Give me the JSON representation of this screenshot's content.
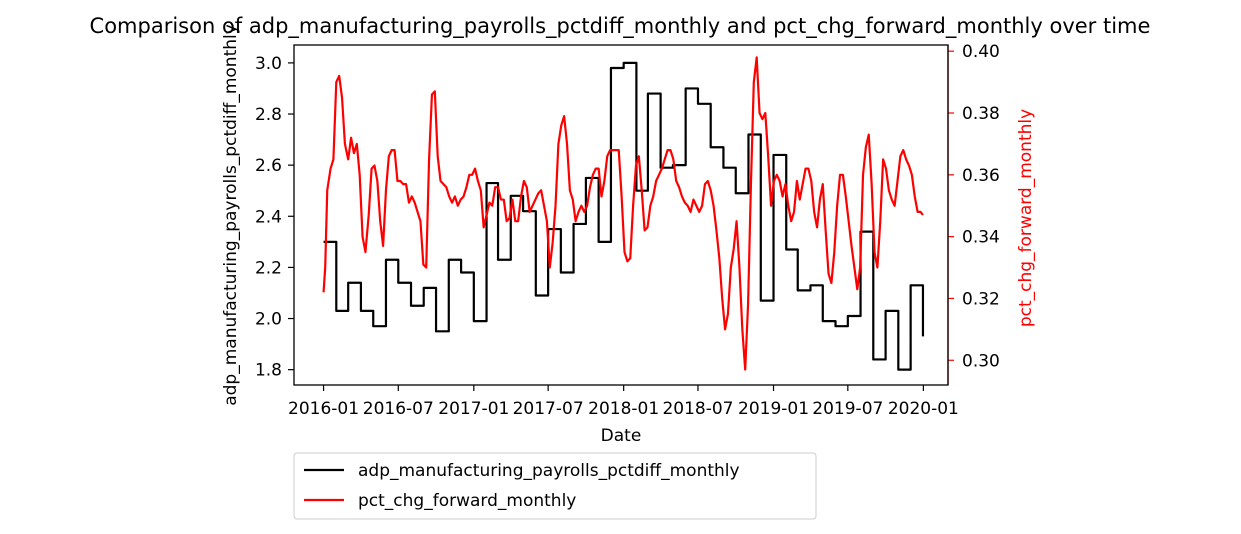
{
  "chart_data": {
    "type": "line",
    "title": "Comparison of adp_manufacturing_payrolls_pctdiff_monthly and pct_chg_forward_monthly over time",
    "xlabel": "Date",
    "ylabel_left": "adp_manufacturing_payrolls_pctdiff_monthly",
    "ylabel_right": "pct_chg_forward_monthly",
    "x_ticks": [
      "2016-01",
      "2016-07",
      "2017-01",
      "2017-07",
      "2018-01",
      "2018-07",
      "2019-01",
      "2019-07",
      "2020-01"
    ],
    "y_left_ticks": [
      "1.8",
      "2.0",
      "2.2",
      "2.4",
      "2.6",
      "2.8",
      "3.0"
    ],
    "y_right_ticks": [
      "0.30",
      "0.32",
      "0.34",
      "0.36",
      "0.38",
      "0.40"
    ],
    "xlim": [
      "2015-10-21",
      "2020-03-01"
    ],
    "ylim_left": [
      1.74,
      3.07
    ],
    "ylim_right": [
      0.292,
      0.402
    ],
    "grid": false,
    "legend": "below plot, left",
    "colors": {
      "left_series": "#000000",
      "right_series": "#ff0000",
      "right_axis": "#ff0000"
    },
    "series": [
      {
        "name": "adp_manufacturing_payrolls_pctdiff_monthly",
        "axis": "left",
        "step": true,
        "points": [
          [
            "2016-01-01",
            2.3
          ],
          [
            "2016-02-01",
            2.03
          ],
          [
            "2016-03-01",
            2.14
          ],
          [
            "2016-04-01",
            2.03
          ],
          [
            "2016-05-01",
            1.97
          ],
          [
            "2016-06-01",
            2.23
          ],
          [
            "2016-07-01",
            2.14
          ],
          [
            "2016-08-01",
            2.05
          ],
          [
            "2016-09-01",
            2.12
          ],
          [
            "2016-10-01",
            1.95
          ],
          [
            "2016-11-01",
            2.23
          ],
          [
            "2016-12-01",
            2.18
          ],
          [
            "2017-01-01",
            1.99
          ],
          [
            "2017-02-01",
            2.53
          ],
          [
            "2017-03-01",
            2.23
          ],
          [
            "2017-04-01",
            2.48
          ],
          [
            "2017-05-01",
            2.42
          ],
          [
            "2017-06-01",
            2.09
          ],
          [
            "2017-07-01",
            2.35
          ],
          [
            "2017-08-01",
            2.18
          ],
          [
            "2017-09-01",
            2.37
          ],
          [
            "2017-10-01",
            2.55
          ],
          [
            "2017-11-01",
            2.3
          ],
          [
            "2017-12-01",
            2.98
          ],
          [
            "2018-01-01",
            3.0
          ],
          [
            "2018-02-01",
            2.5
          ],
          [
            "2018-03-01",
            2.88
          ],
          [
            "2018-04-01",
            2.59
          ],
          [
            "2018-05-01",
            2.6
          ],
          [
            "2018-06-01",
            2.9
          ],
          [
            "2018-07-01",
            2.84
          ],
          [
            "2018-08-01",
            2.67
          ],
          [
            "2018-09-01",
            2.59
          ],
          [
            "2018-10-01",
            2.49
          ],
          [
            "2018-11-01",
            2.72
          ],
          [
            "2018-12-01",
            2.07
          ],
          [
            "2019-01-01",
            2.64
          ],
          [
            "2019-02-01",
            2.27
          ],
          [
            "2019-03-01",
            2.11
          ],
          [
            "2019-04-01",
            2.13
          ],
          [
            "2019-05-01",
            1.99
          ],
          [
            "2019-06-01",
            1.97
          ],
          [
            "2019-07-01",
            2.01
          ],
          [
            "2019-08-01",
            2.34
          ],
          [
            "2019-09-01",
            1.84
          ],
          [
            "2019-10-01",
            2.03
          ],
          [
            "2019-11-01",
            1.8
          ],
          [
            "2019-12-01",
            2.13
          ],
          [
            "2019-12-31",
            1.93
          ]
        ]
      },
      {
        "name": "pct_chg_forward_monthly",
        "axis": "right",
        "step": false,
        "points": [
          [
            "2016-01-01",
            0.322
          ],
          [
            "2016-01-05",
            0.33
          ],
          [
            "2016-01-10",
            0.355
          ],
          [
            "2016-01-18",
            0.362
          ],
          [
            "2016-01-25",
            0.365
          ],
          [
            "2016-02-01",
            0.39
          ],
          [
            "2016-02-08",
            0.392
          ],
          [
            "2016-02-15",
            0.385
          ],
          [
            "2016-02-22",
            0.37
          ],
          [
            "2016-03-01",
            0.365
          ],
          [
            "2016-03-08",
            0.372
          ],
          [
            "2016-03-15",
            0.367
          ],
          [
            "2016-03-22",
            0.37
          ],
          [
            "2016-03-29",
            0.36
          ],
          [
            "2016-04-05",
            0.34
          ],
          [
            "2016-04-12",
            0.335
          ],
          [
            "2016-04-20",
            0.347
          ],
          [
            "2016-04-27",
            0.362
          ],
          [
            "2016-05-04",
            0.363
          ],
          [
            "2016-05-11",
            0.358
          ],
          [
            "2016-05-18",
            0.345
          ],
          [
            "2016-05-25",
            0.337
          ],
          [
            "2016-06-01",
            0.355
          ],
          [
            "2016-06-08",
            0.366
          ],
          [
            "2016-06-15",
            0.368
          ],
          [
            "2016-06-22",
            0.368
          ],
          [
            "2016-06-29",
            0.358
          ],
          [
            "2016-07-06",
            0.358
          ],
          [
            "2016-07-13",
            0.357
          ],
          [
            "2016-07-20",
            0.357
          ],
          [
            "2016-07-27",
            0.351
          ],
          [
            "2016-08-03",
            0.353
          ],
          [
            "2016-08-10",
            0.351
          ],
          [
            "2016-08-17",
            0.348
          ],
          [
            "2016-08-24",
            0.345
          ],
          [
            "2016-08-31",
            0.331
          ],
          [
            "2016-09-07",
            0.33
          ],
          [
            "2016-09-14",
            0.365
          ],
          [
            "2016-09-21",
            0.386
          ],
          [
            "2016-09-28",
            0.387
          ],
          [
            "2016-10-05",
            0.366
          ],
          [
            "2016-10-12",
            0.358
          ],
          [
            "2016-10-19",
            0.357
          ],
          [
            "2016-10-26",
            0.356
          ],
          [
            "2016-11-02",
            0.353
          ],
          [
            "2016-11-09",
            0.351
          ],
          [
            "2016-11-16",
            0.353
          ],
          [
            "2016-11-23",
            0.35
          ],
          [
            "2016-11-30",
            0.352
          ],
          [
            "2016-12-07",
            0.353
          ],
          [
            "2016-12-14",
            0.356
          ],
          [
            "2016-12-21",
            0.36
          ],
          [
            "2016-12-28",
            0.36
          ],
          [
            "2017-01-04",
            0.362
          ],
          [
            "2017-01-11",
            0.358
          ],
          [
            "2017-01-18",
            0.355
          ],
          [
            "2017-01-25",
            0.343
          ],
          [
            "2017-02-01",
            0.347
          ],
          [
            "2017-02-08",
            0.351
          ],
          [
            "2017-02-15",
            0.35
          ],
          [
            "2017-02-22",
            0.356
          ],
          [
            "2017-03-01",
            0.356
          ],
          [
            "2017-03-08",
            0.352
          ],
          [
            "2017-03-15",
            0.352
          ],
          [
            "2017-03-22",
            0.345
          ],
          [
            "2017-03-29",
            0.346
          ],
          [
            "2017-04-05",
            0.352
          ],
          [
            "2017-04-12",
            0.345
          ],
          [
            "2017-04-19",
            0.345
          ],
          [
            "2017-04-26",
            0.353
          ],
          [
            "2017-05-03",
            0.358
          ],
          [
            "2017-05-10",
            0.356
          ],
          [
            "2017-05-17",
            0.348
          ],
          [
            "2017-05-24",
            0.35
          ],
          [
            "2017-05-31",
            0.352
          ],
          [
            "2017-06-07",
            0.354
          ],
          [
            "2017-06-14",
            0.355
          ],
          [
            "2017-06-21",
            0.35
          ],
          [
            "2017-06-28",
            0.345
          ],
          [
            "2017-07-05",
            0.33
          ],
          [
            "2017-07-12",
            0.338
          ],
          [
            "2017-07-19",
            0.35
          ],
          [
            "2017-07-26",
            0.37
          ],
          [
            "2017-08-02",
            0.376
          ],
          [
            "2017-08-09",
            0.379
          ],
          [
            "2017-08-16",
            0.37
          ],
          [
            "2017-08-23",
            0.355
          ],
          [
            "2017-08-30",
            0.352
          ],
          [
            "2017-09-06",
            0.345
          ],
          [
            "2017-09-13",
            0.348
          ],
          [
            "2017-09-20",
            0.35
          ],
          [
            "2017-09-27",
            0.348
          ],
          [
            "2017-10-04",
            0.35
          ],
          [
            "2017-10-11",
            0.356
          ],
          [
            "2017-10-18",
            0.36
          ],
          [
            "2017-10-25",
            0.362
          ],
          [
            "2017-11-01",
            0.362
          ],
          [
            "2017-11-08",
            0.353
          ],
          [
            "2017-11-15",
            0.358
          ],
          [
            "2017-11-22",
            0.366
          ],
          [
            "2017-11-29",
            0.368
          ],
          [
            "2017-12-06",
            0.368
          ],
          [
            "2017-12-13",
            0.368
          ],
          [
            "2017-12-20",
            0.368
          ],
          [
            "2017-12-27",
            0.353
          ],
          [
            "2018-01-03",
            0.335
          ],
          [
            "2018-01-10",
            0.332
          ],
          [
            "2018-01-17",
            0.333
          ],
          [
            "2018-01-24",
            0.35
          ],
          [
            "2018-01-31",
            0.363
          ],
          [
            "2018-02-07",
            0.366
          ],
          [
            "2018-02-14",
            0.355
          ],
          [
            "2018-02-21",
            0.342
          ],
          [
            "2018-02-28",
            0.343
          ],
          [
            "2018-03-07",
            0.35
          ],
          [
            "2018-03-14",
            0.353
          ],
          [
            "2018-03-21",
            0.358
          ],
          [
            "2018-03-28",
            0.36
          ],
          [
            "2018-04-04",
            0.362
          ],
          [
            "2018-04-11",
            0.365
          ],
          [
            "2018-04-18",
            0.368
          ],
          [
            "2018-04-25",
            0.368
          ],
          [
            "2018-05-02",
            0.365
          ],
          [
            "2018-05-09",
            0.358
          ],
          [
            "2018-05-16",
            0.356
          ],
          [
            "2018-05-23",
            0.353
          ],
          [
            "2018-05-30",
            0.351
          ],
          [
            "2018-06-06",
            0.35
          ],
          [
            "2018-06-13",
            0.348
          ],
          [
            "2018-06-20",
            0.352
          ],
          [
            "2018-06-27",
            0.35
          ],
          [
            "2018-07-04",
            0.348
          ],
          [
            "2018-07-11",
            0.35
          ],
          [
            "2018-07-18",
            0.357
          ],
          [
            "2018-07-25",
            0.358
          ],
          [
            "2018-08-01",
            0.355
          ],
          [
            "2018-08-08",
            0.35
          ],
          [
            "2018-08-15",
            0.342
          ],
          [
            "2018-08-22",
            0.333
          ],
          [
            "2018-08-29",
            0.32
          ],
          [
            "2018-09-05",
            0.31
          ],
          [
            "2018-09-12",
            0.315
          ],
          [
            "2018-09-19",
            0.33
          ],
          [
            "2018-09-26",
            0.336
          ],
          [
            "2018-10-03",
            0.345
          ],
          [
            "2018-10-10",
            0.33
          ],
          [
            "2018-10-17",
            0.31
          ],
          [
            "2018-10-24",
            0.297
          ],
          [
            "2018-10-31",
            0.318
          ],
          [
            "2018-11-07",
            0.357
          ],
          [
            "2018-11-14",
            0.39
          ],
          [
            "2018-11-21",
            0.398
          ],
          [
            "2018-11-28",
            0.38
          ],
          [
            "2018-12-05",
            0.378
          ],
          [
            "2018-12-12",
            0.38
          ],
          [
            "2018-12-19",
            0.366
          ],
          [
            "2018-12-26",
            0.35
          ],
          [
            "2019-01-02",
            0.358
          ],
          [
            "2019-01-09",
            0.36
          ],
          [
            "2019-01-16",
            0.358
          ],
          [
            "2019-01-23",
            0.353
          ],
          [
            "2019-01-30",
            0.357
          ],
          [
            "2019-02-06",
            0.35
          ],
          [
            "2019-02-13",
            0.345
          ],
          [
            "2019-02-20",
            0.348
          ],
          [
            "2019-02-27",
            0.358
          ],
          [
            "2019-03-06",
            0.352
          ],
          [
            "2019-03-13",
            0.357
          ],
          [
            "2019-03-20",
            0.362
          ],
          [
            "2019-03-27",
            0.362
          ],
          [
            "2019-04-03",
            0.358
          ],
          [
            "2019-04-10",
            0.348
          ],
          [
            "2019-04-17",
            0.343
          ],
          [
            "2019-04-24",
            0.352
          ],
          [
            "2019-05-01",
            0.357
          ],
          [
            "2019-05-08",
            0.342
          ],
          [
            "2019-05-15",
            0.328
          ],
          [
            "2019-05-22",
            0.325
          ],
          [
            "2019-05-29",
            0.335
          ],
          [
            "2019-06-05",
            0.35
          ],
          [
            "2019-06-12",
            0.36
          ],
          [
            "2019-06-19",
            0.36
          ],
          [
            "2019-06-26",
            0.353
          ],
          [
            "2019-07-03",
            0.345
          ],
          [
            "2019-07-10",
            0.337
          ],
          [
            "2019-07-17",
            0.33
          ],
          [
            "2019-07-24",
            0.323
          ],
          [
            "2019-07-31",
            0.33
          ],
          [
            "2019-08-07",
            0.36
          ],
          [
            "2019-08-14",
            0.369
          ],
          [
            "2019-08-21",
            0.373
          ],
          [
            "2019-08-28",
            0.357
          ],
          [
            "2019-09-04",
            0.335
          ],
          [
            "2019-09-11",
            0.33
          ],
          [
            "2019-09-18",
            0.345
          ],
          [
            "2019-09-25",
            0.365
          ],
          [
            "2019-10-02",
            0.362
          ],
          [
            "2019-10-09",
            0.355
          ],
          [
            "2019-10-16",
            0.352
          ],
          [
            "2019-10-23",
            0.35
          ],
          [
            "2019-10-30",
            0.358
          ],
          [
            "2019-11-06",
            0.366
          ],
          [
            "2019-11-13",
            0.368
          ],
          [
            "2019-11-20",
            0.365
          ],
          [
            "2019-11-27",
            0.363
          ],
          [
            "2019-12-04",
            0.36
          ],
          [
            "2019-12-11",
            0.353
          ],
          [
            "2019-12-18",
            0.348
          ],
          [
            "2019-12-25",
            0.348
          ],
          [
            "2019-12-31",
            0.347
          ]
        ]
      }
    ]
  }
}
